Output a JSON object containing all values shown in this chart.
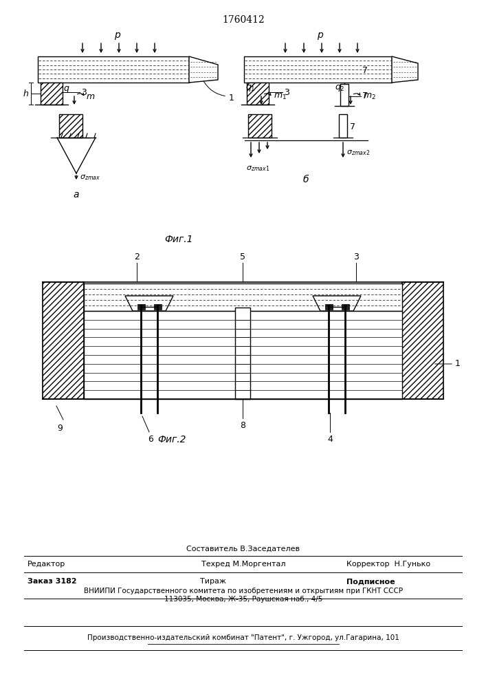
{
  "title": "1760412",
  "fig1_label": "Фиг.1",
  "fig2_label": "Фиг.2",
  "background": "#ffffff",
  "footer_sestavitel": "Составитель В.Заседателев",
  "footer_redaktor": "Редактор",
  "footer_tehred": "Техред М.Моргентал",
  "footer_korrektor": "Корректор  Н.Гунько",
  "footer_zakaz": "Заказ 3182",
  "footer_tirazh": "Тираж",
  "footer_podpisnoe": "Подписное",
  "footer_vniipи": "ВНИИПИ Государственного комитета по изобретениям и открытиям при ГКНТ СССР",
  "footer_addr": "113035, Москва, Ж-35, Раушская наб., 4/5",
  "footer_patent": "Производственно-издательский комбинат \"Патент\", г. Ужгород, ул.Гагарина, 101"
}
